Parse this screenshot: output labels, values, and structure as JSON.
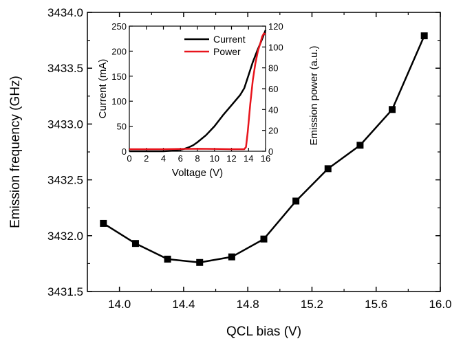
{
  "chart_data": [
    {
      "type": "line",
      "markers": "square",
      "title": "",
      "xlabel": "QCL bias (V)",
      "ylabel": "Emission frequency (GHz)",
      "xlim": [
        13.8,
        16.0
      ],
      "ylim": [
        3431.5,
        3434.0
      ],
      "xticks": [
        "14.0",
        "14.4",
        "14.8",
        "15.2",
        "15.6",
        "16.0"
      ],
      "yticks": [
        "3431.5",
        "3432.0",
        "3432.5",
        "3433.0",
        "3433.5",
        "3434.0"
      ],
      "grid": false,
      "series": [
        {
          "color": "#000000",
          "x": [
            13.9,
            14.1,
            14.3,
            14.5,
            14.7,
            14.9,
            15.1,
            15.3,
            15.5,
            15.7,
            15.9
          ],
          "y": [
            3432.11,
            3431.93,
            3431.79,
            3431.76,
            3431.81,
            3431.97,
            3432.31,
            3432.6,
            3432.81,
            3433.13,
            3433.79
          ]
        }
      ]
    },
    {
      "type": "line",
      "title": "",
      "xlabel": "Voltage (V)",
      "ylabel": "Current (mA)",
      "y2label": "Emission power (a.u.)",
      "xlim": [
        0,
        16
      ],
      "ylim": [
        0,
        250
      ],
      "y2lim": [
        0,
        120
      ],
      "xticks": [
        "0",
        "2",
        "4",
        "6",
        "8",
        "10",
        "12",
        "14",
        "16"
      ],
      "yticks": [
        "0",
        "50",
        "100",
        "150",
        "200",
        "250"
      ],
      "y2ticks": [
        "0",
        "20",
        "40",
        "60",
        "80",
        "100",
        "120"
      ],
      "grid": false,
      "legend": "top-right",
      "series": [
        {
          "name": "Current",
          "color": "#000000",
          "axis": "left",
          "x": [
            0,
            2,
            4,
            5,
            6,
            6.5,
            7,
            7.5,
            8,
            9,
            10,
            11,
            12,
            13,
            13.5,
            14,
            14.5,
            15,
            15.5,
            16
          ],
          "y": [
            0,
            0,
            0,
            1,
            3,
            5,
            8,
            12,
            18,
            32,
            50,
            72,
            92,
            112,
            126,
            152,
            178,
            200,
            220,
            242
          ]
        },
        {
          "name": "Power",
          "color": "#e8141c",
          "axis": "right",
          "x": [
            0,
            2,
            4,
            6,
            8,
            10,
            12,
            13.5,
            13.7,
            13.9,
            14.2,
            14.5,
            14.8,
            15.1,
            15.4,
            15.6,
            15.8,
            16
          ],
          "y": [
            2,
            2,
            2,
            2.2,
            2.4,
            2.2,
            2,
            2,
            4,
            18,
            45,
            68,
            84,
            96,
            104,
            110,
            113,
            112
          ]
        }
      ]
    }
  ]
}
